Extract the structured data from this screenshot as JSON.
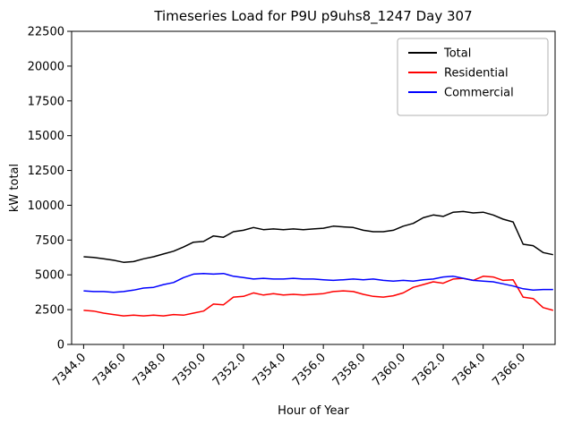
{
  "chart_data": {
    "type": "line",
    "title": "Timeseries Load for P9U p9uhs8_1247  Day 307",
    "xlabel": "Hour of Year",
    "ylabel": "kW total",
    "xlim": [
      7343.4,
      7367.6
    ],
    "ylim": [
      0,
      22500
    ],
    "grid": false,
    "legend_position": "upper right",
    "background": "#ffffff",
    "xticks": {
      "values": [
        7344,
        7346,
        7348,
        7350,
        7352,
        7354,
        7356,
        7358,
        7360,
        7362,
        7364,
        7366
      ],
      "labels": [
        "7344.0",
        "7346.0",
        "7348.0",
        "7350.0",
        "7352.0",
        "7354.0",
        "7356.0",
        "7358.0",
        "7360.0",
        "7362.0",
        "7364.0",
        "7366.0"
      ]
    },
    "yticks": {
      "values": [
        0,
        2500,
        5000,
        7500,
        10000,
        12500,
        15000,
        17500,
        20000,
        22500
      ],
      "labels": [
        "0",
        "2500",
        "5000",
        "7500",
        "10000",
        "12500",
        "15000",
        "17500",
        "20000",
        "22500"
      ]
    },
    "x": [
      7344.0,
      7344.5,
      7345.0,
      7345.5,
      7346.0,
      7346.5,
      7347.0,
      7347.5,
      7348.0,
      7348.5,
      7349.0,
      7349.5,
      7350.0,
      7350.5,
      7351.0,
      7351.5,
      7352.0,
      7352.5,
      7353.0,
      7353.5,
      7354.0,
      7354.5,
      7355.0,
      7355.5,
      7356.0,
      7356.5,
      7357.0,
      7357.5,
      7358.0,
      7358.5,
      7359.0,
      7359.5,
      7360.0,
      7360.5,
      7361.0,
      7361.5,
      7362.0,
      7362.5,
      7363.0,
      7363.5,
      7364.0,
      7364.5,
      7365.0,
      7365.5,
      7366.0,
      7366.5,
      7367.0,
      7367.5
    ],
    "series": [
      {
        "name": "Total",
        "color": "#000000",
        "values": [
          6300,
          6250,
          6150,
          6050,
          5900,
          5950,
          6150,
          6300,
          6500,
          6700,
          7000,
          7350,
          7400,
          7800,
          7700,
          8100,
          8200,
          8400,
          8250,
          8300,
          8250,
          8300,
          8250,
          8300,
          8350,
          8500,
          8450,
          8400,
          8200,
          8100,
          8100,
          8200,
          8500,
          8700,
          9100,
          9300,
          9200,
          9500,
          9550,
          9450,
          9500,
          9300,
          9000,
          8800,
          7200,
          7100,
          6600,
          6450
        ]
      },
      {
        "name": "Residential",
        "color": "#ff0000",
        "values": [
          2450,
          2400,
          2250,
          2150,
          2050,
          2100,
          2050,
          2100,
          2050,
          2150,
          2100,
          2250,
          2400,
          2900,
          2850,
          3400,
          3450,
          3700,
          3550,
          3650,
          3550,
          3600,
          3550,
          3600,
          3650,
          3800,
          3850,
          3800,
          3600,
          3450,
          3400,
          3500,
          3700,
          4100,
          4300,
          4500,
          4400,
          4700,
          4750,
          4600,
          4900,
          4850,
          4600,
          4650,
          3400,
          3300,
          2650,
          2450
        ]
      },
      {
        "name": "Commercial",
        "color": "#0000ff",
        "values": [
          3850,
          3800,
          3800,
          3750,
          3800,
          3900,
          4050,
          4100,
          4300,
          4450,
          4800,
          5050,
          5100,
          5050,
          5100,
          4900,
          4800,
          4700,
          4750,
          4700,
          4700,
          4750,
          4700,
          4700,
          4650,
          4600,
          4650,
          4700,
          4650,
          4700,
          4600,
          4550,
          4600,
          4550,
          4650,
          4700,
          4850,
          4900,
          4750,
          4600,
          4550,
          4500,
          4350,
          4200,
          4000,
          3900,
          3950,
          3950
        ]
      }
    ]
  }
}
